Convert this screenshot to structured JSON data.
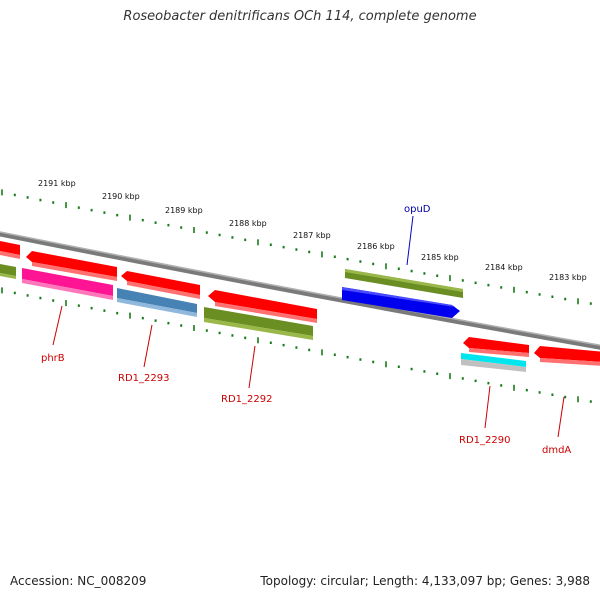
{
  "title": "Roseobacter denitrificans OCh 114, complete genome",
  "footer": {
    "accession": "Accession: NC_008209",
    "summary": "Topology: circular; Length: 4,133,097 bp; Genes: 3,988"
  },
  "scale_labels": [
    "2191 kbp",
    "2190 kbp",
    "2189 kbp",
    "2188 kbp",
    "2187 kbp",
    "2186 kbp",
    "2185 kbp",
    "2184 kbp",
    "2183 kbp"
  ],
  "gene_labels": [
    "opuD",
    "phrB",
    "RD1_2293",
    "RD1_2292",
    "RD1_2290",
    "dmdA"
  ],
  "colors": {
    "backbone": "#808080",
    "ticks": "#1a7a1a",
    "red_gene": "#ff0000",
    "olive_gene": "#6b8e23",
    "blue_gene": "#0000ee",
    "pink_gene": "#ff1493",
    "steel_gene": "#4682b4",
    "cyan_gene": "#00e5ee",
    "label_red": "#cc0000",
    "label_blue": "#0000aa"
  }
}
